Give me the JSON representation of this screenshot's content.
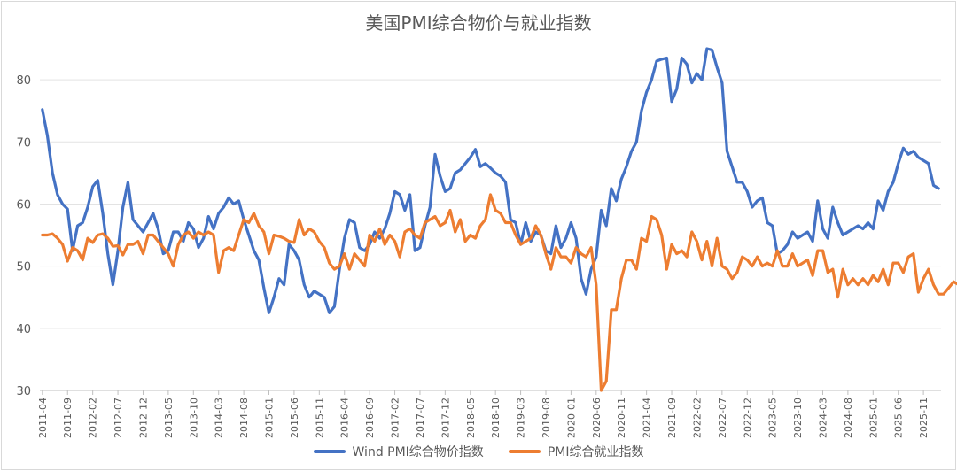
{
  "chart_data": {
    "type": "line",
    "title": "美国PMI综合物价与就业指数",
    "ylim": [
      30,
      85
    ],
    "yticks": [
      30,
      40,
      50,
      60,
      70,
      80
    ],
    "grid": true,
    "legend_placement": "bottom",
    "start_month": "2011-04",
    "x_tick_labels": [
      "2011-04",
      "2011-09",
      "2012-02",
      "2012-07",
      "2012-12",
      "2013-05",
      "2013-10",
      "2014-03",
      "2014-08",
      "2015-01",
      "2015-06",
      "2015-11",
      "2016-04",
      "2016-09",
      "2017-02",
      "2017-07",
      "2017-12",
      "2018-05",
      "2018-10",
      "2019-03",
      "2019-08",
      "2020-01",
      "2020-06",
      "2020-11",
      "2021-04",
      "2021-09",
      "2022-02",
      "2022-07",
      "2022-12",
      "2023-05",
      "2023-10",
      "2024-03",
      "2024-08",
      "2025-01",
      "2025-06",
      "2025-11"
    ],
    "series": [
      {
        "name": "Wind PMI综合物价指数",
        "color": "#4472c4",
        "values": [
          75.2,
          71.0,
          65.0,
          61.5,
          60.0,
          59.2,
          52.5,
          56.5,
          57.0,
          59.5,
          62.8,
          63.8,
          58.5,
          52.0,
          47.0,
          52.5,
          59.5,
          63.5,
          57.5,
          56.5,
          55.5,
          57.0,
          58.5,
          56.0,
          52.0,
          52.5,
          55.5,
          55.5,
          54.0,
          57.0,
          56.0,
          53.0,
          54.5,
          58.0,
          56.0,
          58.5,
          59.5,
          61.0,
          60.0,
          60.5,
          57.5,
          55.0,
          52.5,
          51.0,
          46.5,
          42.5,
          45.0,
          48.0,
          47.0,
          53.5,
          52.5,
          51.0,
          47.0,
          45.0,
          46.0,
          45.5,
          45.0,
          42.5,
          43.5,
          49.5,
          54.5,
          57.5,
          57.0,
          53.0,
          52.5,
          53.5,
          55.5,
          54.5,
          56.0,
          58.5,
          62.0,
          61.5,
          59.0,
          61.5,
          52.5,
          53.0,
          56.5,
          59.5,
          68.0,
          64.5,
          62.0,
          62.5,
          65.0,
          65.5,
          66.5,
          67.5,
          68.8,
          66.0,
          66.5,
          65.8,
          65.0,
          64.5,
          63.5,
          57.5,
          57.0,
          53.5,
          57.0,
          54.0,
          55.5,
          55.0,
          52.5,
          52.0,
          56.5,
          53.0,
          54.5,
          57.0,
          54.5,
          48.0,
          45.5,
          49.5,
          51.5,
          59.0,
          56.5,
          62.5,
          60.5,
          64.0,
          66.0,
          68.5,
          70.0,
          75.0,
          78.0,
          80.0,
          83.0,
          83.3,
          83.5,
          76.5,
          78.5,
          83.5,
          82.5,
          79.5,
          81.0,
          80.0,
          85.0,
          84.8,
          82.0,
          79.5,
          68.5,
          66.0,
          63.5,
          63.5,
          62.0,
          59.5,
          60.5,
          61.0,
          57.0,
          56.5,
          52.0,
          52.5,
          53.5,
          55.5,
          54.5,
          55.0,
          55.5,
          54.0,
          60.5,
          56.0,
          54.5,
          59.5,
          57.0,
          55.0,
          55.5,
          56.0,
          56.5,
          56.0,
          57.0,
          56.0,
          60.5,
          59.0,
          62.0,
          63.5,
          66.5,
          69.0,
          68.0,
          68.5,
          67.5,
          67.0,
          66.5,
          63.0,
          62.5
        ]
      },
      {
        "name": "PMI综合就业指数",
        "color": "#ed7d31",
        "values": [
          55.0,
          55.0,
          55.2,
          54.5,
          53.5,
          50.8,
          53.0,
          52.5,
          51.0,
          54.5,
          53.8,
          55.0,
          55.2,
          54.5,
          53.2,
          53.3,
          51.8,
          53.5,
          53.5,
          54.0,
          52.0,
          55.0,
          55.0,
          54.0,
          53.0,
          52.0,
          50.0,
          53.5,
          55.0,
          55.5,
          54.5,
          55.5,
          55.0,
          55.5,
          55.0,
          49.0,
          52.5,
          53.0,
          52.5,
          55.0,
          57.5,
          57.0,
          58.5,
          56.5,
          55.5,
          52.0,
          55.0,
          54.8,
          54.5,
          54.0,
          53.8,
          57.5,
          55.0,
          56.0,
          55.5,
          54.0,
          53.0,
          50.5,
          49.5,
          50.0,
          52.0,
          49.5,
          52.0,
          51.0,
          50.0,
          55.0,
          54.0,
          56.0,
          53.5,
          55.0,
          54.0,
          51.5,
          55.5,
          56.0,
          55.0,
          54.5,
          57.0,
          57.5,
          58.0,
          56.5,
          57.0,
          59.0,
          55.5,
          57.5,
          54.0,
          55.0,
          54.5,
          56.5,
          57.5,
          61.5,
          59.0,
          58.5,
          57.0,
          57.0,
          55.0,
          53.5,
          54.0,
          54.5,
          56.5,
          55.0,
          52.0,
          49.5,
          53.0,
          51.5,
          51.5,
          50.5,
          53.0,
          52.0,
          51.5,
          53.0,
          47.0,
          30.0,
          31.5,
          43.0,
          43.0,
          48.0,
          51.0,
          51.0,
          49.5,
          54.5,
          54.0,
          58.0,
          57.5,
          55.0,
          49.5,
          53.5,
          52.0,
          52.5,
          51.5,
          55.5,
          54.0,
          51.0,
          54.0,
          50.0,
          54.5,
          50.0,
          49.5,
          48.0,
          49.0,
          51.5,
          51.0,
          50.0,
          51.5,
          50.0,
          50.5,
          50.0,
          52.5,
          50.0,
          50.0,
          52.0,
          50.0,
          50.5,
          51.0,
          48.5,
          52.5,
          52.5,
          49.0,
          49.5,
          45.0,
          49.5,
          47.0,
          48.0,
          47.0,
          48.0,
          47.0,
          48.5,
          47.5,
          49.5,
          47.0,
          50.5,
          50.5,
          49.0,
          51.5,
          52.0,
          45.8,
          48.0,
          49.5,
          47.0,
          45.5,
          45.5,
          46.5,
          47.5,
          47.0,
          49.8
        ]
      }
    ]
  }
}
